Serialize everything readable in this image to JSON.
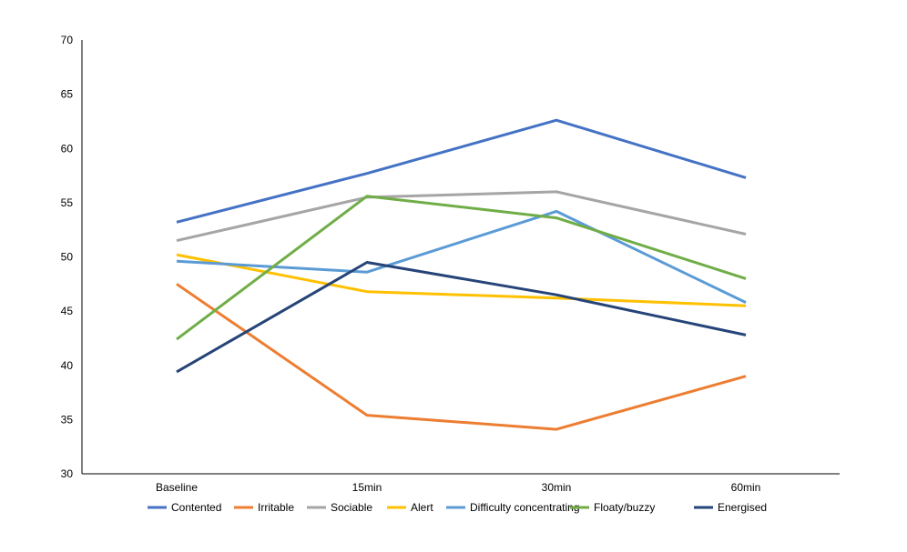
{
  "chart_data": {
    "type": "line",
    "title": "",
    "xlabel": "",
    "ylabel": "",
    "categories": [
      "Baseline",
      "15min",
      "30min",
      "60min"
    ],
    "ylim": [
      30,
      70
    ],
    "yticks": [
      30,
      35,
      40,
      45,
      50,
      55,
      60,
      65,
      70
    ],
    "grid": false,
    "legend_position": "bottom",
    "series": [
      {
        "name": "Contented",
        "color": "#4472C4",
        "values": [
          53.2,
          57.7,
          62.6,
          57.3
        ]
      },
      {
        "name": "Irritable",
        "color": "#ED7D31",
        "values": [
          47.5,
          35.4,
          34.1,
          39.0
        ]
      },
      {
        "name": "Sociable",
        "color": "#A5A5A5",
        "values": [
          51.5,
          55.5,
          56.0,
          52.1
        ]
      },
      {
        "name": "Alert",
        "color": "#FFC000",
        "values": [
          50.2,
          46.8,
          46.2,
          45.5
        ]
      },
      {
        "name": "Difficulty concentrating",
        "color": "#5B9BD5",
        "values": [
          49.6,
          48.6,
          54.2,
          45.8
        ]
      },
      {
        "name": "Floaty/buzzy",
        "color": "#70AD47",
        "values": [
          42.4,
          55.6,
          53.6,
          48.0
        ]
      },
      {
        "name": "Energised",
        "color": "#264478",
        "values": [
          39.4,
          49.5,
          46.5,
          42.8
        ]
      }
    ]
  }
}
